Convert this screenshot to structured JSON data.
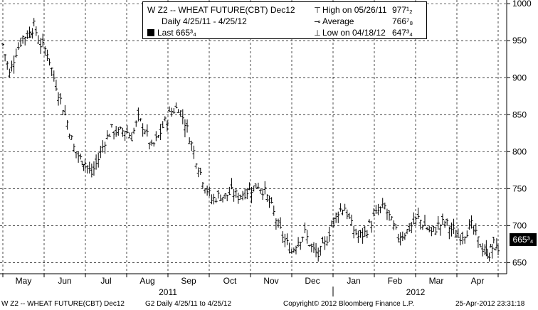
{
  "legend": {
    "title": "W Z2 -- WHEAT FUTURE(CBT) Dec12",
    "range": "Daily 4/25/11 - 4/25/12",
    "last": "Last 665³₄",
    "high": "High on 05/26/11",
    "high_value": "977¹₂",
    "average": "Average",
    "average_value": "766⁷₈",
    "low": "Low on 04/18/12",
    "low_value": "647³₄"
  },
  "last_badge": "665³₄",
  "footer": {
    "left": "W Z2 -- WHEAT FUTURE(CBT) Dec12",
    "mid": "G2  Daily  4/25/11 to 4/25/12",
    "copyright": "Copyright© 2012 Bloomberg Finance L.P.",
    "timestamp": "25-Apr-2012 23:31:18"
  },
  "colors": {
    "background": "#ffffff",
    "bars": "#000000",
    "grid": "#000000"
  },
  "chart_data": {
    "type": "bar",
    "style": "ohlc",
    "title": "",
    "xlabel": "",
    "ylabel": "",
    "ylim": [
      635,
      1005
    ],
    "y_ticks": [
      650,
      700,
      750,
      800,
      850,
      900,
      950,
      1000
    ],
    "y_tick_labels": [
      "650",
      "700",
      "750",
      "800",
      "850",
      "900",
      "950",
      "1000"
    ],
    "months": [
      "May",
      "Jun",
      "Jul",
      "Aug",
      "Sep",
      "Oct",
      "Nov",
      "Dec",
      "Jan",
      "Feb",
      "Mar",
      "Apr"
    ],
    "years": [
      "2011",
      "2012"
    ],
    "grid": true,
    "y_axis_side": "right",
    "series": [
      {
        "values": [
          {
            "m": 0.0,
            "c": 945
          },
          {
            "m": 0.3,
            "c": 905
          },
          {
            "m": 0.6,
            "c": 935
          },
          {
            "m": 0.9,
            "c": 955
          },
          {
            "m": 1.2,
            "c": 960
          },
          {
            "m": 1.4,
            "c": 970
          },
          {
            "m": 1.7,
            "c": 945
          },
          {
            "m": 2.0,
            "c": 935
          },
          {
            "m": 2.3,
            "c": 900
          },
          {
            "m": 2.6,
            "c": 870
          },
          {
            "m": 2.9,
            "c": 840
          },
          {
            "m": 3.2,
            "c": 805
          },
          {
            "m": 3.5,
            "c": 790
          },
          {
            "m": 3.7,
            "c": 785
          },
          {
            "m": 4.0,
            "c": 770
          },
          {
            "m": 4.3,
            "c": 790
          },
          {
            "m": 4.6,
            "c": 815
          },
          {
            "m": 4.9,
            "c": 830
          },
          {
            "m": 5.2,
            "c": 825
          },
          {
            "m": 5.5,
            "c": 830
          },
          {
            "m": 5.8,
            "c": 820
          },
          {
            "m": 6.1,
            "c": 845
          },
          {
            "m": 6.4,
            "c": 830
          },
          {
            "m": 6.7,
            "c": 805
          },
          {
            "m": 7.0,
            "c": 820
          },
          {
            "m": 7.3,
            "c": 840
          },
          {
            "m": 7.6,
            "c": 855
          },
          {
            "m": 7.9,
            "c": 860
          },
          {
            "m": 8.2,
            "c": 840
          },
          {
            "m": 8.5,
            "c": 810
          },
          {
            "m": 8.8,
            "c": 780
          },
          {
            "m": 9.1,
            "c": 755
          },
          {
            "m": 9.4,
            "c": 735
          },
          {
            "m": 9.7,
            "c": 740
          },
          {
            "m": 10.0,
            "c": 740
          },
          {
            "m": 10.3,
            "c": 745
          },
          {
            "m": 10.6,
            "c": 740
          },
          {
            "m": 10.9,
            "c": 745
          },
          {
            "m": 11.2,
            "c": 750
          },
          {
            "m": 11.5,
            "c": 755
          },
          {
            "m": 11.8,
            "c": 745
          },
          {
            "m": 12.1,
            "c": 725
          },
          {
            "m": 12.4,
            "c": 700
          },
          {
            "m": 12.7,
            "c": 680
          },
          {
            "m": 13.0,
            "c": 665
          },
          {
            "m": 13.3,
            "c": 680
          },
          {
            "m": 13.6,
            "c": 690
          },
          {
            "m": 13.9,
            "c": 670
          },
          {
            "m": 14.2,
            "c": 660
          },
          {
            "m": 14.5,
            "c": 675
          },
          {
            "m": 14.8,
            "c": 700
          },
          {
            "m": 15.1,
            "c": 720
          },
          {
            "m": 15.4,
            "c": 725
          },
          {
            "m": 15.7,
            "c": 700
          },
          {
            "m": 16.0,
            "c": 685
          },
          {
            "m": 16.3,
            "c": 690
          },
          {
            "m": 16.6,
            "c": 705
          },
          {
            "m": 16.9,
            "c": 720
          },
          {
            "m": 17.2,
            "c": 725
          },
          {
            "m": 17.5,
            "c": 705
          },
          {
            "m": 17.8,
            "c": 685
          },
          {
            "m": 18.1,
            "c": 690
          },
          {
            "m": 18.4,
            "c": 700
          },
          {
            "m": 18.7,
            "c": 710
          },
          {
            "m": 19.0,
            "c": 700
          },
          {
            "m": 19.3,
            "c": 690
          },
          {
            "m": 19.6,
            "c": 700
          },
          {
            "m": 19.9,
            "c": 705
          },
          {
            "m": 20.2,
            "c": 695
          },
          {
            "m": 20.5,
            "c": 685
          },
          {
            "m": 20.8,
            "c": 690
          },
          {
            "m": 21.1,
            "c": 700
          },
          {
            "m": 21.4,
            "c": 680
          },
          {
            "m": 21.7,
            "c": 665
          },
          {
            "m": 21.9,
            "c": 662
          },
          {
            "m": 22.1,
            "c": 675
          },
          {
            "m": 22.3,
            "c": 666
          }
        ]
      }
    ]
  }
}
